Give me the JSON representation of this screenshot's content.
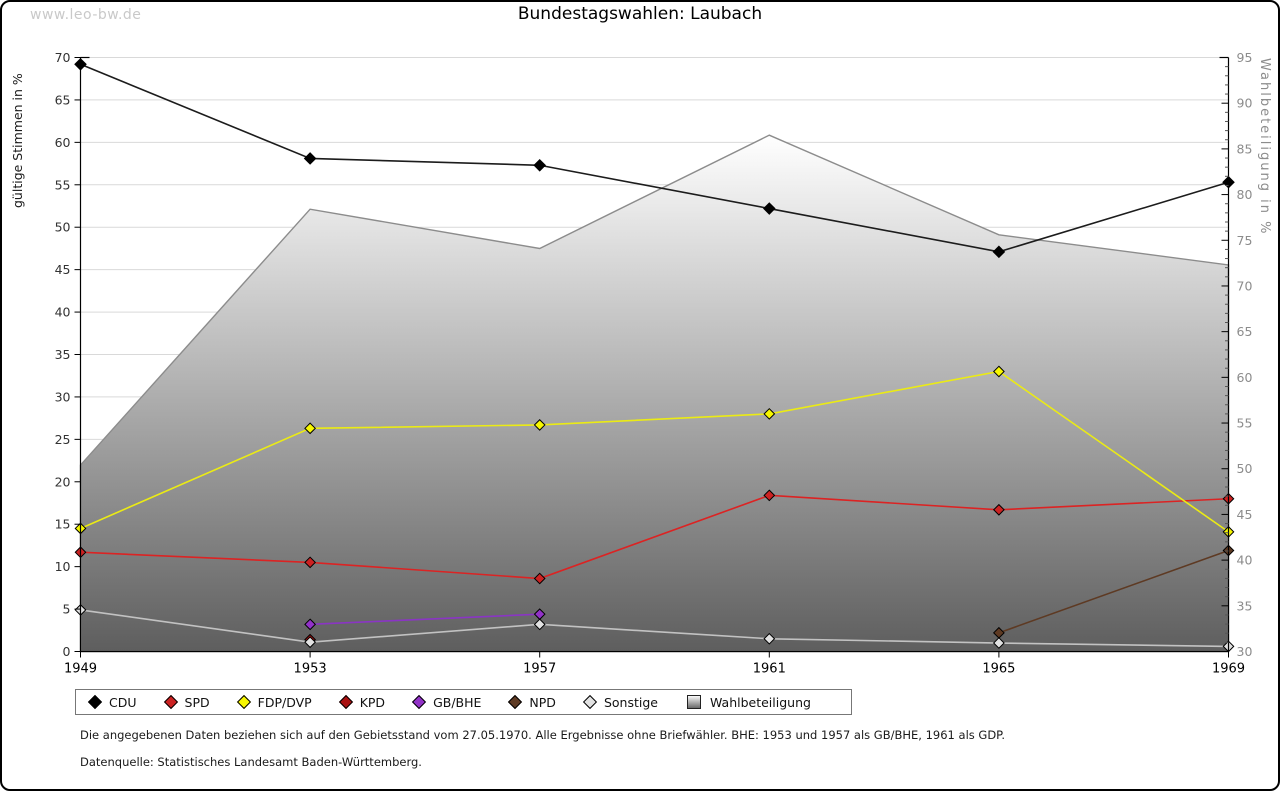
{
  "watermark": "www.leo-bw.de",
  "title": "Bundestagswahlen: Laubach",
  "chart_data": {
    "type": "line",
    "x": [
      1949,
      1953,
      1957,
      1961,
      1965,
      1969
    ],
    "left_axis": {
      "label": "gültige Stimmen in %",
      "min": 0,
      "max": 70,
      "tick_step": 5
    },
    "right_axis": {
      "label": "Wahlbeteiligung in %",
      "min": 30,
      "max": 95,
      "tick_step": 5,
      "minor_step": 1
    },
    "grid": true,
    "legend_position": "bottom",
    "series": [
      {
        "name": "CDU",
        "axis": "left",
        "marker": "#000000",
        "line": "#1c1c1c",
        "values": [
          69.2,
          58.1,
          57.3,
          52.2,
          47.1,
          55.3
        ]
      },
      {
        "name": "SPD",
        "axis": "left",
        "marker": "#cc2222",
        "line": "#dc2323",
        "values": [
          11.7,
          10.5,
          8.6,
          18.4,
          16.7,
          18.0
        ]
      },
      {
        "name": "FDP/DVP",
        "axis": "left",
        "marker": "#f7f700",
        "line": "#ebeb14",
        "values": [
          14.5,
          26.3,
          26.7,
          28.0,
          33.0,
          14.1
        ]
      },
      {
        "name": "KPD",
        "axis": "left",
        "marker": "#aa1111",
        "line": "#aa1111",
        "values": [
          null,
          1.4,
          null,
          null,
          null,
          null
        ]
      },
      {
        "name": "GB/BHE",
        "axis": "left",
        "marker": "#9232c8",
        "line": "#8a35c4",
        "values": [
          null,
          3.2,
          4.4,
          null,
          null,
          null
        ]
      },
      {
        "name": "NPD",
        "axis": "left",
        "marker": "#5e3a23",
        "line": "#5e3a23",
        "values": [
          null,
          null,
          null,
          null,
          2.2,
          11.9
        ]
      },
      {
        "name": "Sonstige",
        "axis": "left",
        "marker": "#e2e2e2",
        "line": "#c2c2c2",
        "values": [
          4.9,
          1.1,
          3.2,
          1.5,
          1.0,
          0.6
        ]
      }
    ],
    "area_series": {
      "name": "Wahlbeteiligung",
      "axis": "right",
      "values": [
        50.4,
        78.4,
        74.1,
        86.5,
        75.6,
        72.3
      ],
      "fill_top": "#ffffff",
      "fill_bottom": "#5e5e5e",
      "stroke": "#8c8c8c"
    }
  },
  "footnotes": [
    "Die angegebenen Daten beziehen sich auf den Gebietsstand vom 27.05.1970. Alle Ergebnisse ohne Briefwähler. BHE: 1953 und 1957 als GB/BHE, 1961 als GDP.",
    "Datenquelle: Statistisches Landesamt Baden-Württemberg."
  ],
  "colors": {
    "grid": "#d9d9d9",
    "axis": "#000000",
    "left_tick_text": "#333333",
    "right_tick_text": "#8c8c8c",
    "year_text": "#000000"
  }
}
